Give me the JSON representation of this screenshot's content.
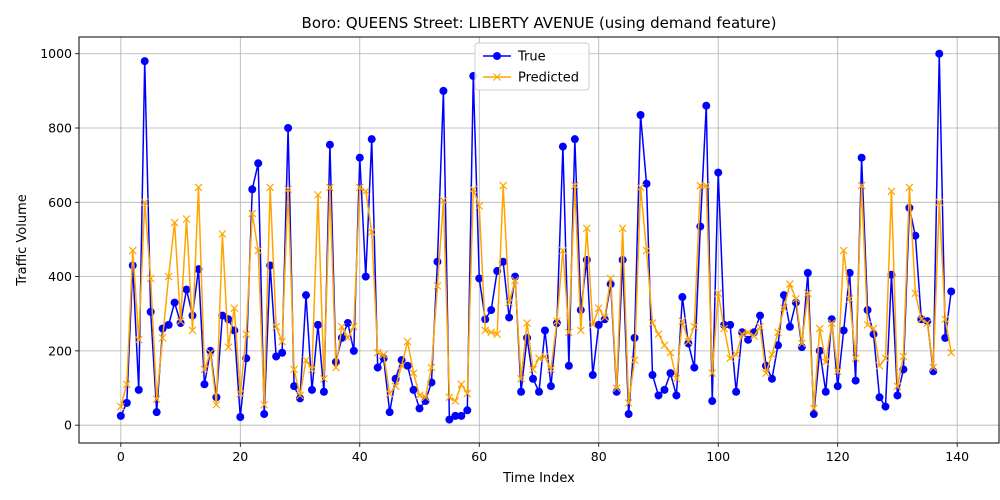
{
  "chart_data": {
    "type": "line",
    "title": "Boro: QUEENS Street: LIBERTY AVENUE (using demand feature)",
    "xlabel": "Time Index",
    "ylabel": "Traffic Volume",
    "xlim": [
      -7,
      147
    ],
    "ylim": [
      -48,
      1045
    ],
    "x_ticks": [
      0,
      20,
      40,
      60,
      80,
      100,
      120,
      140
    ],
    "y_ticks": [
      0,
      200,
      400,
      600,
      800,
      1000
    ],
    "grid": true,
    "legend_position": "top-center",
    "series": [
      {
        "name": "True",
        "color": "#0000ff",
        "marker": "circle",
        "values": [
          25,
          60,
          430,
          95,
          980,
          305,
          35,
          260,
          270,
          330,
          275,
          365,
          295,
          420,
          110,
          200,
          75,
          295,
          285,
          255,
          22,
          180,
          635,
          705,
          30,
          430,
          185,
          195,
          800,
          105,
          72,
          350,
          95,
          270,
          90,
          755,
          170,
          235,
          275,
          200,
          720,
          400,
          770,
          155,
          180,
          35,
          125,
          175,
          160,
          95,
          45,
          65,
          115,
          440,
          900,
          15,
          25,
          25,
          40,
          940,
          395,
          285,
          310,
          415,
          440,
          290,
          400,
          90,
          235,
          125,
          90,
          255,
          105,
          275,
          750,
          160,
          770,
          310,
          445,
          135,
          270,
          285,
          380,
          90,
          445,
          30,
          235,
          835,
          650,
          135,
          80,
          95,
          140,
          80,
          345,
          220,
          155,
          535,
          860,
          65,
          680,
          270,
          270,
          90,
          250,
          230,
          250,
          295,
          160,
          125,
          215,
          350,
          265,
          330,
          210,
          410,
          30,
          200,
          90,
          285,
          105,
          255,
          410,
          120,
          720,
          310,
          245,
          75,
          50,
          405,
          80,
          150,
          585,
          510,
          285,
          280,
          145,
          1000,
          235,
          360
        ]
      },
      {
        "name": "Predicted",
        "color": "#ffa500",
        "marker": "x",
        "values": [
          50,
          110,
          470,
          230,
          600,
          395,
          70,
          235,
          400,
          545,
          280,
          555,
          255,
          640,
          150,
          195,
          55,
          515,
          210,
          315,
          85,
          245,
          570,
          470,
          55,
          640,
          265,
          225,
          635,
          150,
          80,
          175,
          150,
          620,
          125,
          640,
          155,
          265,
          235,
          265,
          640,
          630,
          520,
          195,
          190,
          85,
          105,
          160,
          225,
          140,
          80,
          75,
          155,
          375,
          605,
          75,
          65,
          110,
          85,
          635,
          590,
          255,
          250,
          245,
          645,
          330,
          390,
          125,
          275,
          150,
          180,
          185,
          150,
          280,
          470,
          250,
          645,
          255,
          530,
          270,
          315,
          290,
          395,
          100,
          530,
          60,
          175,
          640,
          470,
          275,
          245,
          215,
          195,
          125,
          280,
          225,
          265,
          645,
          645,
          140,
          355,
          260,
          180,
          190,
          245,
          250,
          240,
          265,
          140,
          190,
          250,
          315,
          380,
          340,
          220,
          355,
          45,
          260,
          170,
          275,
          145,
          470,
          340,
          180,
          645,
          270,
          260,
          160,
          180,
          630,
          105,
          185,
          640,
          355,
          285,
          275,
          155,
          600,
          285,
          195
        ]
      }
    ]
  }
}
